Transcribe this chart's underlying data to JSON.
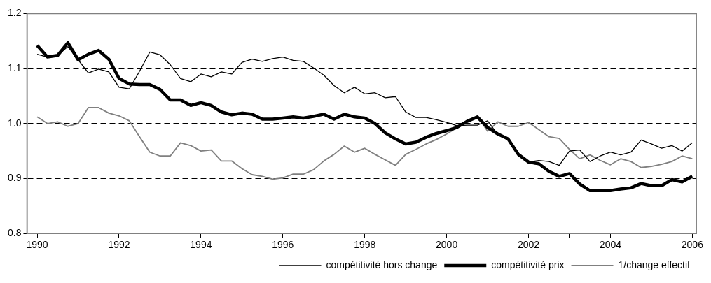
{
  "chart_data": {
    "type": "line",
    "x": [
      1990,
      1990.25,
      1990.5,
      1990.75,
      1991,
      1991.25,
      1991.5,
      1991.75,
      1992,
      1992.25,
      1992.5,
      1992.75,
      1993,
      1993.25,
      1993.5,
      1993.75,
      1994,
      1994.25,
      1994.5,
      1994.75,
      1995,
      1995.25,
      1995.5,
      1995.75,
      1996,
      1996.25,
      1996.5,
      1996.75,
      1997,
      1997.25,
      1997.5,
      1997.75,
      1998,
      1998.25,
      1998.5,
      1998.75,
      1999,
      1999.25,
      1999.5,
      1999.75,
      2000,
      2000.25,
      2000.5,
      2000.75,
      2001,
      2001.25,
      2001.5,
      2001.75,
      2002,
      2002.25,
      2002.5,
      2002.75,
      2003,
      2003.25,
      2003.5,
      2003.75,
      2004,
      2004.25,
      2004.5,
      2004.75,
      2005,
      2005.25,
      2005.5,
      2005.75,
      2006
    ],
    "series": [
      {
        "name": "compétitivité hors change",
        "color": "#000000",
        "values": [
          1.126,
          1.121,
          1.124,
          1.14,
          1.116,
          1.092,
          1.099,
          1.094,
          1.066,
          1.063,
          1.095,
          1.13,
          1.125,
          1.107,
          1.082,
          1.076,
          1.09,
          1.085,
          1.094,
          1.09,
          1.111,
          1.117,
          1.113,
          1.118,
          1.121,
          1.115,
          1.113,
          1.101,
          1.088,
          1.069,
          1.056,
          1.066,
          1.054,
          1.056,
          1.047,
          1.049,
          1.021,
          1.011,
          1.011,
          1.007,
          1.002,
          0.996,
          0.997,
          0.997,
          1.005,
          0.98,
          0.972,
          0.944,
          0.93,
          0.933,
          0.931,
          0.924,
          0.95,
          0.952,
          0.931,
          0.941,
          0.948,
          0.943,
          0.948,
          0.97,
          0.963,
          0.955,
          0.96,
          0.95,
          0.965
        ]
      },
      {
        "name": "compétitivité prix",
        "color": "#000000",
        "values": [
          1.142,
          1.121,
          1.124,
          1.147,
          1.116,
          1.126,
          1.133,
          1.117,
          1.082,
          1.072,
          1.071,
          1.071,
          1.062,
          1.043,
          1.043,
          1.033,
          1.038,
          1.033,
          1.021,
          1.016,
          1.019,
          1.017,
          1.008,
          1.008,
          1.01,
          1.012,
          1.01,
          1.013,
          1.017,
          1.008,
          1.017,
          1.012,
          1.01,
          1.0,
          0.983,
          0.972,
          0.963,
          0.966,
          0.975,
          0.982,
          0.987,
          0.993,
          1.004,
          1.012,
          0.993,
          0.981,
          0.972,
          0.944,
          0.93,
          0.927,
          0.913,
          0.904,
          0.909,
          0.89,
          0.878,
          0.878,
          0.878,
          0.881,
          0.883,
          0.891,
          0.887,
          0.887,
          0.898,
          0.894,
          0.904
        ]
      },
      {
        "name": "1/change effectif",
        "color": "#808080",
        "values": [
          1.012,
          1.0,
          1.003,
          0.995,
          1.0,
          1.029,
          1.029,
          1.019,
          1.014,
          1.005,
          0.976,
          0.948,
          0.941,
          0.941,
          0.965,
          0.96,
          0.95,
          0.952,
          0.932,
          0.932,
          0.918,
          0.907,
          0.904,
          0.899,
          0.901,
          0.908,
          0.908,
          0.916,
          0.932,
          0.944,
          0.959,
          0.948,
          0.955,
          0.944,
          0.934,
          0.924,
          0.944,
          0.953,
          0.963,
          0.971,
          0.981,
          0.992,
          1.004,
          1.013,
          0.986,
          1.003,
          0.995,
          0.995,
          1.002,
          0.989,
          0.976,
          0.973,
          0.953,
          0.936,
          0.943,
          0.933,
          0.925,
          0.936,
          0.931,
          0.92,
          0.922,
          0.926,
          0.931,
          0.941,
          0.936
        ]
      }
    ],
    "xlim": [
      1989.75,
      2006.1
    ],
    "xticks": [
      1990,
      {
        "value": 1991,
        "label": null
      },
      1992,
      {
        "value": 1993,
        "label": null
      },
      1994,
      {
        "value": 1995,
        "label": null
      },
      1996,
      {
        "value": 1997,
        "label": null
      },
      1998,
      {
        "value": 1999,
        "label": null
      },
      2000,
      {
        "value": 2001,
        "label": null
      },
      2002,
      {
        "value": 2003,
        "label": null
      },
      2004,
      {
        "value": 2005,
        "label": null
      },
      2006
    ],
    "ylim": [
      0.8,
      1.2
    ],
    "yticks": [
      0.8,
      0.9,
      {
        "value": 1.0,
        "label": "1.0"
      },
      1.1,
      1.2
    ],
    "grid": "y",
    "legend": "bottom right",
    "marker": "none",
    "line_style": "solid"
  }
}
